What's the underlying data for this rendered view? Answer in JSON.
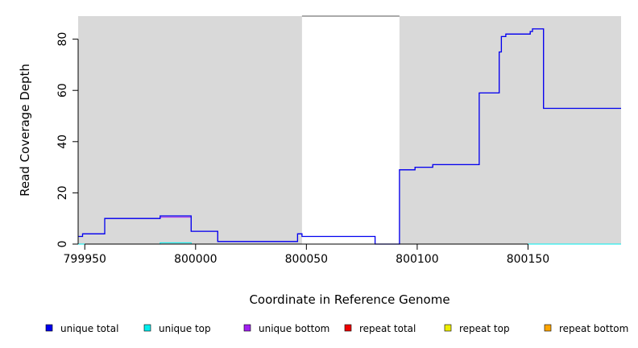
{
  "chart_data": {
    "type": "line",
    "title": "",
    "xlabel": "Coordinate in Reference Genome",
    "ylabel": "Read Coverage Depth",
    "xlim": [
      799947,
      800192
    ],
    "ylim": [
      0,
      89
    ],
    "xticks": [
      799950,
      800000,
      800050,
      800100,
      800150
    ],
    "xtick_labels": [
      "799950",
      "800000",
      "800050",
      "800100",
      "800150"
    ],
    "yticks": [
      0,
      20,
      40,
      60,
      80
    ],
    "ytick_labels": [
      "0",
      "20",
      "40",
      "60",
      "80"
    ],
    "grid": false,
    "legend_position": "bottom",
    "shaded_regions": [
      {
        "x_start": 799947,
        "x_end": 800048
      },
      {
        "x_start": 800092,
        "x_end": 800192
      }
    ],
    "series": [
      {
        "name": "unique total",
        "color": "#0000ee",
        "step_points": [
          [
            799947,
            3
          ],
          [
            799949,
            4
          ],
          [
            799959,
            10
          ],
          [
            799984,
            11
          ],
          [
            799998,
            5
          ],
          [
            800010,
            1
          ],
          [
            800046,
            4
          ],
          [
            800048,
            3
          ],
          [
            800081,
            0
          ],
          [
            800092,
            29
          ],
          [
            800099,
            30
          ],
          [
            800107,
            31
          ],
          [
            800128,
            59
          ],
          [
            800137,
            75
          ],
          [
            800138,
            81
          ],
          [
            800140,
            82
          ],
          [
            800151,
            83
          ],
          [
            800152,
            84
          ],
          [
            800157,
            53
          ],
          [
            800192,
            53
          ]
        ]
      },
      {
        "name": "unique top",
        "color": "#00eeee",
        "step_points": [
          [
            799947,
            0
          ],
          [
            799984,
            0.5
          ],
          [
            799998,
            0
          ],
          [
            800192,
            0
          ]
        ]
      },
      {
        "name": "unique bottom",
        "color": "#a020f0",
        "step_points": [
          [
            799947,
            3
          ],
          [
            799949,
            4
          ],
          [
            799959,
            10
          ],
          [
            799984,
            10.5
          ],
          [
            799998,
            5
          ],
          [
            800010,
            1
          ],
          [
            800046,
            4
          ],
          [
            800048,
            3
          ],
          [
            800081,
            0
          ],
          [
            800092,
            29
          ],
          [
            800099,
            30
          ],
          [
            800107,
            31
          ],
          [
            800128,
            59
          ],
          [
            800137,
            75
          ],
          [
            800138,
            81
          ],
          [
            800140,
            82
          ],
          [
            800151,
            83
          ],
          [
            800152,
            84
          ],
          [
            800157,
            53
          ],
          [
            800192,
            53
          ]
        ]
      },
      {
        "name": "repeat total",
        "color": "#ee0000",
        "step_points": [
          [
            799947,
            0
          ],
          [
            800192,
            0
          ]
        ]
      },
      {
        "name": "repeat top",
        "color": "#eeee00",
        "step_points": [
          [
            799947,
            0
          ],
          [
            800192,
            0
          ]
        ]
      },
      {
        "name": "repeat bottom",
        "color": "#ffa500",
        "step_points": [
          [
            799947,
            0
          ],
          [
            800192,
            0
          ]
        ]
      }
    ]
  }
}
